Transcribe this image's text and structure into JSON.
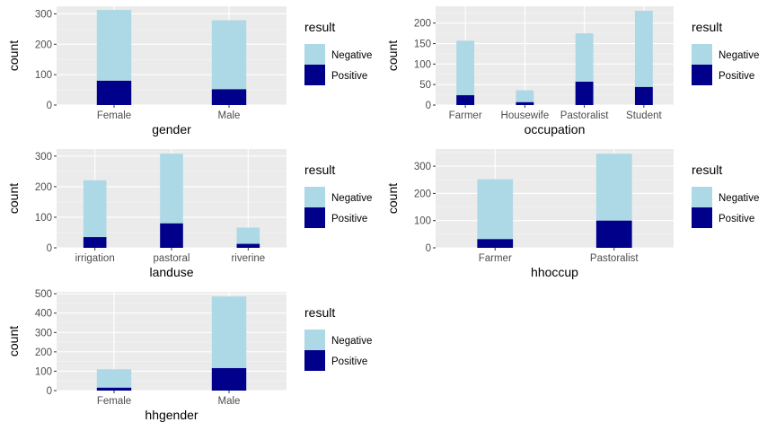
{
  "colors": {
    "panel_bg": "#EBEBEB",
    "grid_major": "#FFFFFF",
    "grid_minor": "#F5F5F5",
    "negative": "#ADD8E6",
    "positive": "#00008B",
    "tick_text": "#4D4D4D",
    "axis_title": "#000000"
  },
  "chart_data": [
    {
      "type": "bar",
      "stacked": true,
      "xlabel": "gender",
      "ylabel": "count",
      "categories": [
        "Female",
        "Male"
      ],
      "series": [
        {
          "name": "Negative",
          "values": [
            233,
            227
          ]
        },
        {
          "name": "Positive",
          "values": [
            80,
            52
          ]
        }
      ],
      "ylim": [
        0,
        325
      ],
      "yticks": [
        0,
        100,
        200,
        300
      ],
      "legend": {
        "title": "result",
        "labels": [
          "Negative",
          "Positive"
        ],
        "position": "right"
      },
      "grid": true
    },
    {
      "type": "bar",
      "stacked": true,
      "xlabel": "occupation",
      "ylabel": "count",
      "categories": [
        "Farmer",
        "Housewife",
        "Pastoralist",
        "Student"
      ],
      "series": [
        {
          "name": "Negative",
          "values": [
            133,
            29,
            118,
            186
          ]
        },
        {
          "name": "Positive",
          "values": [
            24,
            7,
            57,
            44
          ]
        }
      ],
      "ylim": [
        0,
        241
      ],
      "yticks": [
        0,
        50,
        100,
        150,
        200
      ],
      "legend": {
        "title": "result",
        "labels": [
          "Negative",
          "Positive"
        ],
        "position": "right"
      },
      "grid": true
    },
    {
      "type": "bar",
      "stacked": true,
      "xlabel": "landuse",
      "ylabel": "count",
      "categories": [
        "irrigation",
        "pastoral",
        "riverine"
      ],
      "series": [
        {
          "name": "Negative",
          "values": [
            186,
            228,
            53
          ]
        },
        {
          "name": "Positive",
          "values": [
            35,
            80,
            13
          ]
        }
      ],
      "ylim": [
        0,
        323
      ],
      "yticks": [
        0,
        100,
        200,
        300
      ],
      "legend": {
        "title": "result",
        "labels": [
          "Negative",
          "Positive"
        ],
        "position": "right"
      },
      "grid": true
    },
    {
      "type": "bar",
      "stacked": true,
      "xlabel": "hhoccup",
      "ylabel": "count",
      "categories": [
        "Farmer",
        "Pastoralist"
      ],
      "series": [
        {
          "name": "Negative",
          "values": [
            220,
            246
          ]
        },
        {
          "name": "Positive",
          "values": [
            32,
            100
          ]
        }
      ],
      "ylim": [
        0,
        363
      ],
      "yticks": [
        0,
        100,
        200,
        300
      ],
      "legend": {
        "title": "result",
        "labels": [
          "Negative",
          "Positive"
        ],
        "position": "right"
      },
      "grid": true
    },
    {
      "type": "bar",
      "stacked": true,
      "xlabel": "hhgender",
      "ylabel": "count",
      "categories": [
        "Female",
        "Male"
      ],
      "series": [
        {
          "name": "Negative",
          "values": [
            95,
            370
          ]
        },
        {
          "name": "Positive",
          "values": [
            15,
            116
          ]
        }
      ],
      "ylim": [
        0,
        510
      ],
      "yticks": [
        0,
        100,
        200,
        300,
        400,
        500
      ],
      "legend": {
        "title": "result",
        "labels": [
          "Negative",
          "Positive"
        ],
        "position": "right"
      },
      "grid": true
    }
  ]
}
